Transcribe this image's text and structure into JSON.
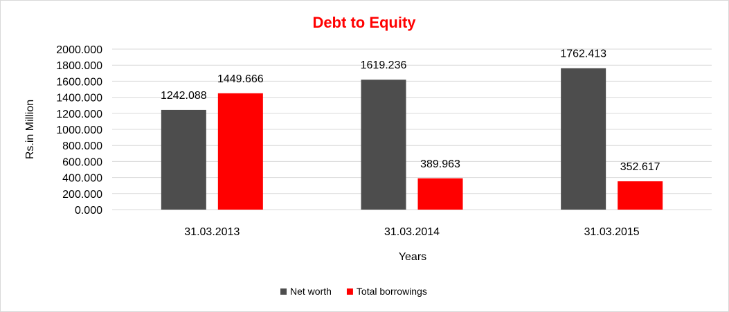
{
  "chart_data": {
    "type": "bar",
    "title": "Debt to Equity",
    "xlabel": "Years",
    "ylabel": "Rs.in Million",
    "categories": [
      "31.03.2013",
      "31.03.2014",
      "31.03.2015"
    ],
    "ylim": [
      0,
      2000
    ],
    "yticks": [
      "0.000",
      "200.000",
      "400.000",
      "600.000",
      "800.000",
      "1000.000",
      "1200.000",
      "1400.000",
      "1600.000",
      "1800.000",
      "2000.000"
    ],
    "series": [
      {
        "name": "Net worth",
        "color": "#4d4d4d",
        "values": [
          1242.088,
          1619.236,
          1762.413
        ],
        "labels": [
          "1242.088",
          "1619.236",
          "1762.413"
        ]
      },
      {
        "name": "Total borrowings",
        "color": "#ff0000",
        "values": [
          1449.666,
          389.963,
          352.617
        ],
        "labels": [
          "1449.666",
          "389.963",
          "352.617"
        ]
      }
    ],
    "grid": true,
    "legend": "bottom",
    "title_color": "#ff0000"
  }
}
